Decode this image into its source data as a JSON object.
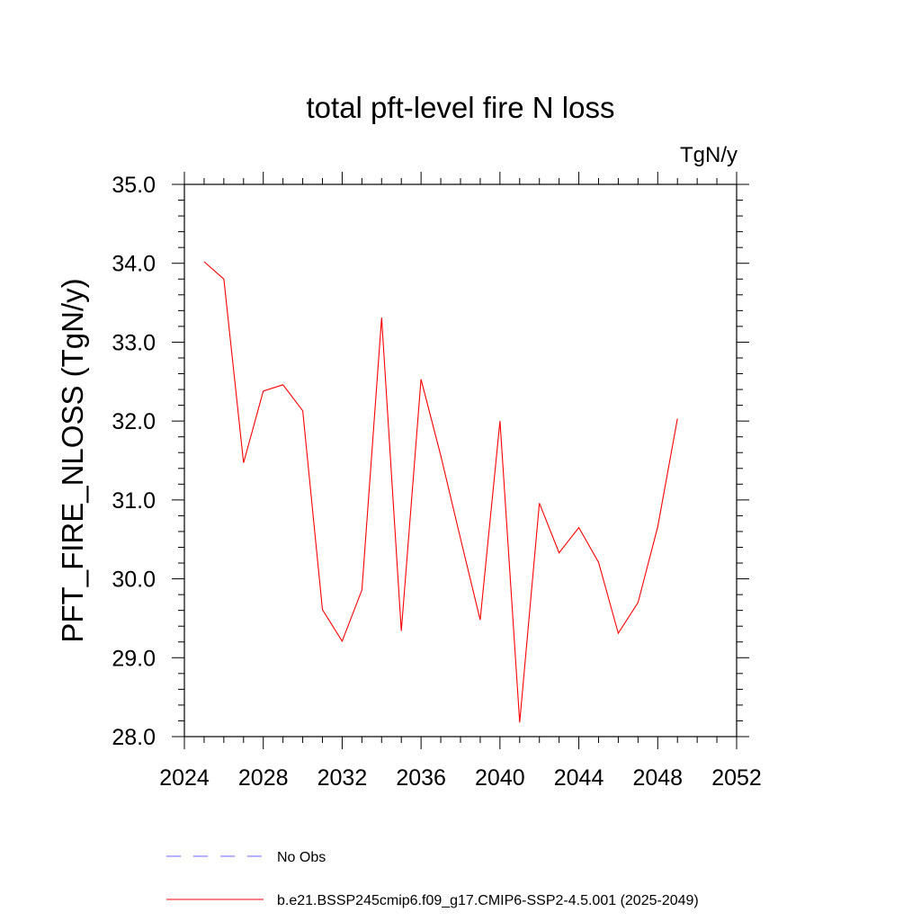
{
  "chart_data": {
    "type": "line",
    "title": "total pft-level fire N loss",
    "units_label": "TgN/y",
    "ylabel": "PFT_FIRE_NLOSS  (TgN/y)",
    "xlabel": "",
    "xlim": [
      2024,
      2052
    ],
    "ylim": [
      28.0,
      35.0
    ],
    "x_ticks": [
      2024,
      2028,
      2032,
      2036,
      2040,
      2044,
      2048,
      2052
    ],
    "y_ticks": [
      "28.0",
      "29.0",
      "30.0",
      "31.0",
      "32.0",
      "33.0",
      "34.0",
      "35.0"
    ],
    "grid": false,
    "legend_position": "bottom",
    "series": [
      {
        "name": "b.e21.BSSP245cmip6.f09_g17.CMIP6-SSP2-4.5.001 (2025-2049)",
        "color": "#ff0000",
        "dash": "solid",
        "x": [
          2025,
          2026,
          2027,
          2028,
          2029,
          2030,
          2031,
          2032,
          2033,
          2034,
          2035,
          2036,
          2037,
          2038,
          2039,
          2040,
          2041,
          2042,
          2043,
          2044,
          2045,
          2046,
          2047,
          2048,
          2049
        ],
        "values": [
          34.02,
          33.8,
          31.47,
          32.38,
          32.46,
          32.13,
          29.61,
          29.21,
          29.86,
          33.31,
          29.34,
          32.53,
          31.56,
          30.51,
          29.48,
          32.0,
          28.18,
          30.96,
          30.33,
          30.65,
          30.21,
          29.31,
          29.7,
          30.66,
          32.03
        ]
      }
    ],
    "legend": [
      {
        "label": "No Obs",
        "color": "#0000ff",
        "dash": "dashed"
      },
      {
        "label": "b.e21.BSSP245cmip6.f09_g17.CMIP6-SSP2-4.5.001 (2025-2049)",
        "color": "#ff0000",
        "dash": "solid"
      }
    ]
  }
}
